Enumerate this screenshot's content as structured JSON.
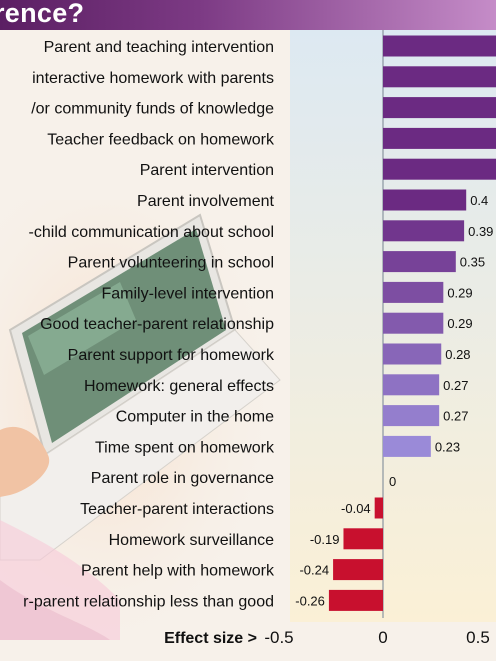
{
  "header": {
    "title_fragment": "rence?"
  },
  "colors": {
    "background": "#f7f1ea",
    "plot_gradient_top": "#dde9f2",
    "plot_gradient_bottom": "#fbf0d6",
    "positive_bar_dark": "#6b2a82",
    "positive_bar_light": "#9a8ad8",
    "negative_bar": "#c8102e",
    "zero_line": "#8a95a0",
    "title_band": "#6a2a72"
  },
  "chart_data": {
    "type": "bar",
    "orientation": "horizontal",
    "categories": [
      "Parent and teaching intervention",
      "interactive homework with parents",
      "/or community funds of knowledge",
      "Teacher feedback on homework",
      "Parent intervention",
      "Parent involvement",
      "-child communication about school",
      "Parent volunteering in school",
      "Family-level intervention",
      "Good teacher-parent relationship",
      "Parent support for homework",
      "Homework: general effects",
      "Computer in the home",
      "Time spent on homework",
      "Parent role in governance",
      "Teacher-parent interactions",
      "Homework surveillance",
      "Parent help with homework",
      "r-parent relationship less than good"
    ],
    "values": [
      null,
      null,
      null,
      null,
      null,
      0.4,
      0.39,
      0.35,
      0.29,
      0.29,
      0.28,
      0.27,
      0.27,
      0.23,
      0,
      -0.04,
      -0.19,
      -0.24,
      -0.26
    ],
    "value_labels": [
      "",
      "",
      "",
      "",
      "",
      "0.4",
      "0.39",
      "0.35",
      "0.29",
      "0.29",
      "0.28",
      "0.27",
      "0.27",
      "0.23",
      "0",
      "-0.04",
      "-0.19",
      "-0.24",
      "-0.26"
    ],
    "xlabel": "Effect size >",
    "xticks": [
      "-0.5",
      "0",
      "0.5"
    ],
    "xlim": [
      -0.5,
      0.6
    ],
    "grid": false
  }
}
